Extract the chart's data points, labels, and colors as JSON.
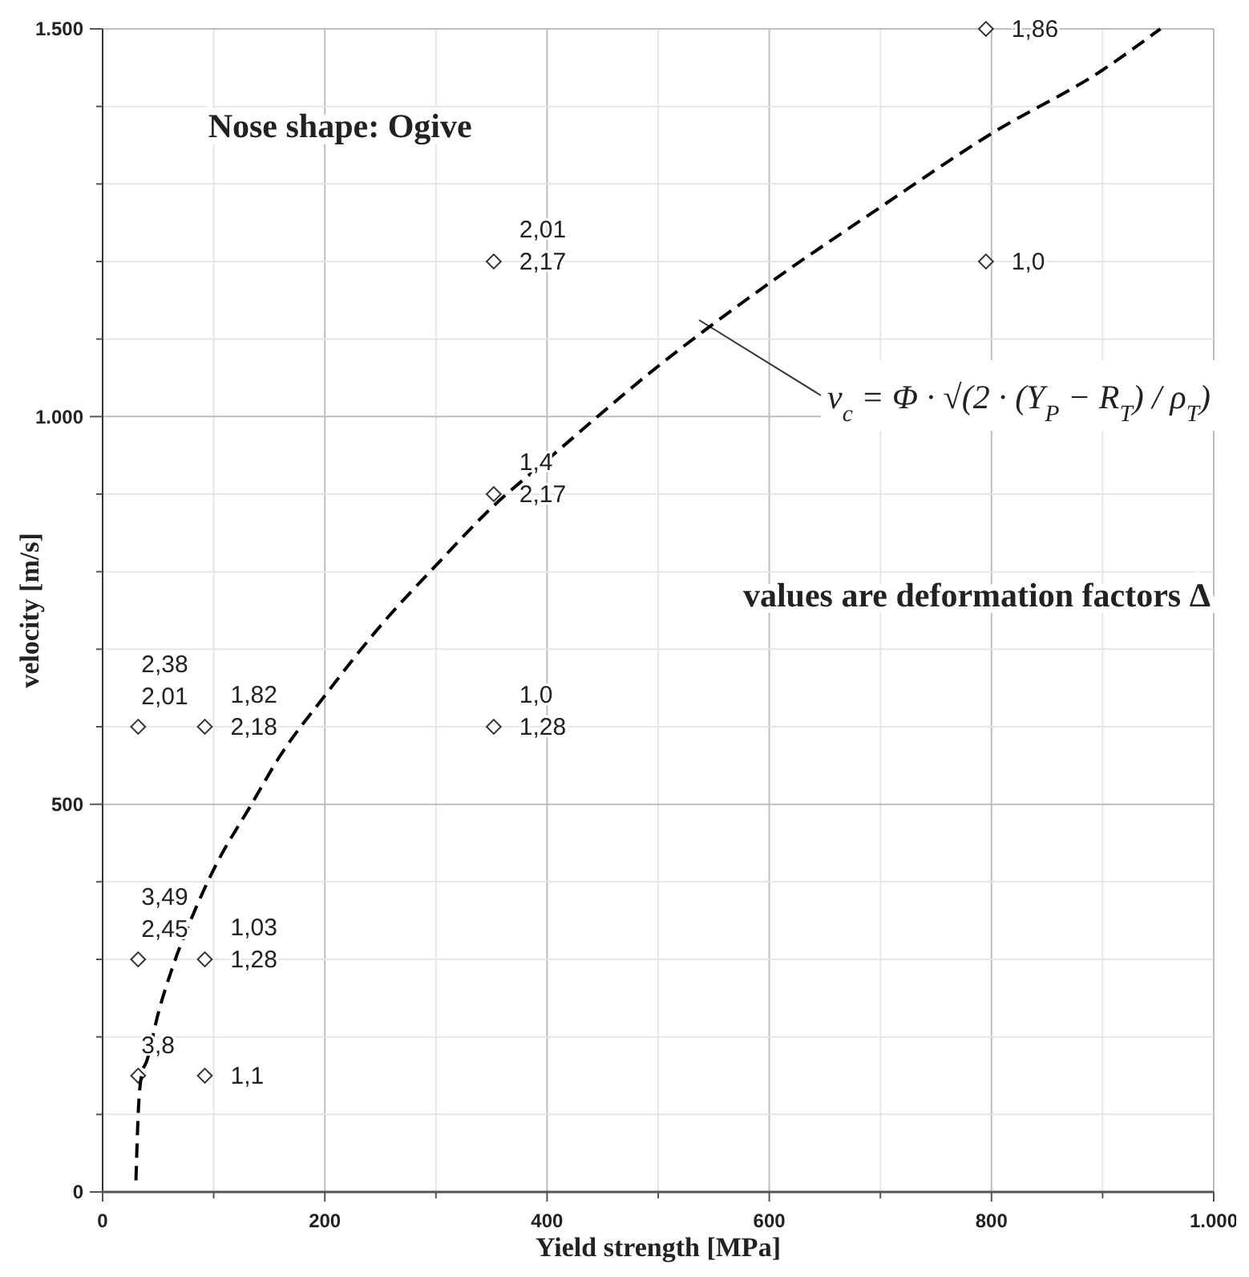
{
  "chart_data": {
    "type": "scatter",
    "xlabel": "Yield strength [MPa]",
    "ylabel": "velocity [m/s]",
    "xlim": [
      0,
      1000
    ],
    "ylim": [
      0,
      1500
    ],
    "xticks": [
      0,
      {
        "value": 100,
        "label": null
      },
      200,
      {
        "value": 300,
        "label": null
      },
      400,
      {
        "value": 500,
        "label": null
      },
      600,
      {
        "value": 700,
        "label": null
      },
      800,
      {
        "value": 900,
        "label": null
      },
      {
        "value": 1000,
        "label": "1.000"
      }
    ],
    "yticks": [
      0,
      {
        "value": 100,
        "label": null
      },
      {
        "value": 200,
        "label": null
      },
      {
        "value": 300,
        "label": null
      },
      {
        "value": 400,
        "label": null
      },
      500,
      {
        "value": 600,
        "label": null
      },
      {
        "value": 700,
        "label": null
      },
      {
        "value": 800,
        "label": null
      },
      {
        "value": 900,
        "label": null
      },
      {
        "value": 1000,
        "label": "1.000"
      },
      {
        "value": 1100,
        "label": null
      },
      {
        "value": 1200,
        "label": null
      },
      {
        "value": 1300,
        "label": null
      },
      {
        "value": 1400,
        "label": null
      },
      {
        "value": 1500,
        "label": "1.500"
      }
    ],
    "grid": true,
    "marker": "diamond",
    "series": [
      {
        "color": "#333333",
        "x": [
          32,
          92,
          32,
          92,
          32,
          92,
          352,
          352,
          352,
          795,
          795
        ],
        "values": [
          150,
          150,
          300,
          300,
          600,
          600,
          600,
          900,
          1200,
          1200,
          1500
        ]
      },
      {
        "type": "line",
        "color": "#000000",
        "line_style": "dashed",
        "marker": "none",
        "x": [
          30,
          32,
          35,
          40,
          50,
          63,
          80,
          100,
          134,
          160,
          200,
          250,
          300,
          352,
          400,
          500,
          600,
          700,
          800,
          900,
          952
        ],
        "values": [
          15,
          100,
          150,
          170,
          230,
          290,
          353,
          416,
          500,
          563,
          640,
          730,
          808,
          885,
          944,
          1065,
          1172,
          1270,
          1365,
          1447,
          1500
        ]
      }
    ],
    "annotations": [
      "Nose shape: Ogive",
      "v$_{c}$ = Φ · √(2 · (Y$_{P}$ − R$_{T}$) / ρ$_{T}$)",
      "values are deformation factors Δ",
      {
        "text": "3,8",
        "x": 32,
        "y": 150
      },
      {
        "text": "1,1",
        "x": 92,
        "y": 150
      },
      {
        "text": "3,49",
        "x": 32,
        "y": 300
      },
      {
        "text": "2,45",
        "x": 32,
        "y": 300
      },
      {
        "text": "1,03",
        "x": 92,
        "y": 300
      },
      {
        "text": "1,28",
        "x": 92,
        "y": 300
      },
      {
        "text": "2,38",
        "x": 32,
        "y": 600
      },
      {
        "text": "2,01",
        "x": 32,
        "y": 600
      },
      {
        "text": "1,82",
        "x": 92,
        "y": 600
      },
      {
        "text": "2,18",
        "x": 92,
        "y": 600
      },
      {
        "text": "1,0",
        "x": 352,
        "y": 600
      },
      {
        "text": "1,28",
        "x": 352,
        "y": 600
      },
      {
        "text": "1,4",
        "x": 352,
        "y": 900
      },
      {
        "text": "2,17",
        "x": 352,
        "y": 900
      },
      {
        "text": "2,01",
        "x": 352,
        "y": 1200
      },
      {
        "text": "2,17",
        "x": 352,
        "y": 1200
      },
      {
        "text": "1,0",
        "x": 795,
        "y": 1200
      },
      {
        "text": "1,86",
        "x": 795,
        "y": 1500
      }
    ]
  }
}
